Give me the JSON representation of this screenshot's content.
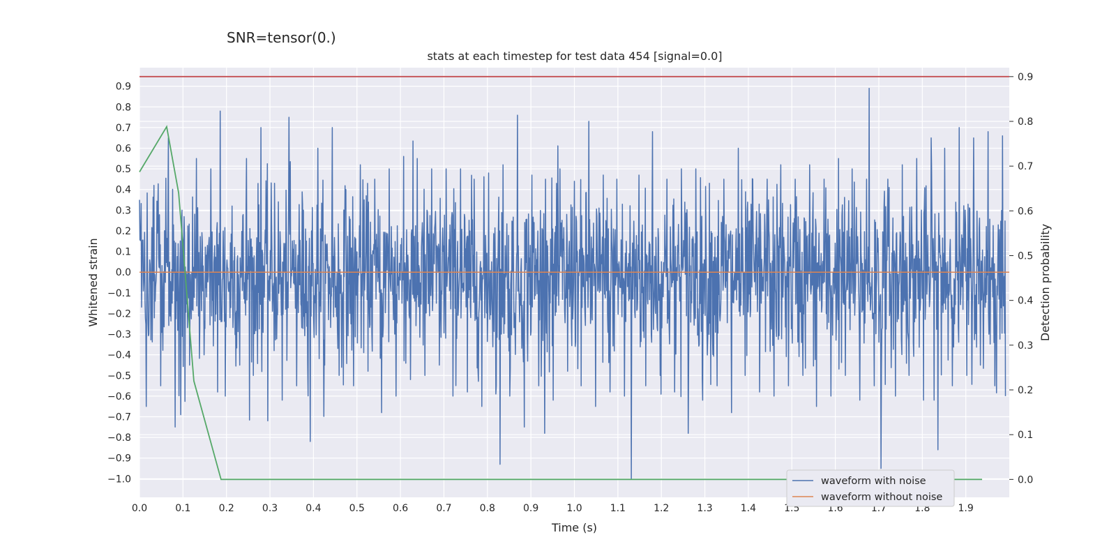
{
  "suptitle": "SNR=tensor(0.)",
  "chart_data": {
    "type": "line",
    "title": "stats at each timestep for test data 454 [signal=0.0]",
    "xlabel": "Time (s)",
    "ylabel": "Whitened strain",
    "ylabel_right": "Detection probability",
    "xlim": [
      0.0,
      2.0
    ],
    "ylim": [
      -1.09,
      0.99
    ],
    "ylim_right": [
      -0.04,
      0.92
    ],
    "x_ticks": [
      0.0,
      0.1,
      0.2,
      0.3,
      0.4,
      0.5,
      0.6,
      0.7,
      0.8,
      0.9,
      1.0,
      1.1,
      1.2,
      1.3,
      1.4,
      1.5,
      1.6,
      1.7,
      1.8,
      1.9
    ],
    "x_tick_labels": [
      "0.0",
      "0.1",
      "0.2",
      "0.3",
      "0.4",
      "0.5",
      "0.6",
      "0.7",
      "0.8",
      "0.9",
      "1.0",
      "1.1",
      "1.2",
      "1.3",
      "1.4",
      "1.5",
      "1.6",
      "1.7",
      "1.8",
      "1.9"
    ],
    "y_ticks": [
      0.9,
      0.8,
      0.7,
      0.6,
      0.5,
      0.4,
      0.3,
      0.2,
      0.1,
      0.0,
      -0.1,
      -0.2,
      -0.3,
      -0.4,
      -0.5,
      -0.6,
      -0.7,
      -0.8,
      -0.9,
      -1.0
    ],
    "y_tick_labels": [
      "0.9",
      "0.8",
      "0.7",
      "0.6",
      "0.5",
      "0.4",
      "0.3",
      "0.2",
      "0.1",
      "0.0",
      "−0.1",
      "−0.2",
      "−0.3",
      "−0.4",
      "−0.5",
      "−0.6",
      "−0.7",
      "−0.8",
      "−0.9",
      "−1.0"
    ],
    "y_right_ticks": [
      0.9,
      0.8,
      0.7,
      0.6,
      0.5,
      0.4,
      0.3,
      0.2,
      0.1,
      0.0
    ],
    "y_right_tick_labels": [
      "0.9",
      "0.8",
      "0.7",
      "0.6",
      "0.5",
      "0.4",
      "0.3",
      "0.2",
      "0.1",
      "0.0"
    ],
    "grid": true,
    "legend_position": "lower-right",
    "series": [
      {
        "name": "waveform with noise",
        "axis": "left",
        "color": "#4c72b0",
        "style": "dense noise, approx. 2048 samples",
        "x": [
          0.0,
          0.016,
          0.033,
          0.049,
          0.066,
          0.082,
          0.098,
          0.115,
          0.131,
          0.148,
          0.164,
          0.18,
          0.186,
          0.197,
          0.213,
          0.23,
          0.246,
          0.262,
          0.279,
          0.295,
          0.311,
          0.328,
          0.344,
          0.361,
          0.377,
          0.393,
          0.41,
          0.426,
          0.443,
          0.459,
          0.475,
          0.492,
          0.508,
          0.525,
          0.541,
          0.557,
          0.574,
          0.59,
          0.607,
          0.623,
          0.639,
          0.656,
          0.672,
          0.689,
          0.705,
          0.721,
          0.738,
          0.754,
          0.77,
          0.787,
          0.803,
          0.82,
          0.829,
          0.836,
          0.852,
          0.869,
          0.885,
          0.902,
          0.918,
          0.934,
          0.951,
          0.967,
          0.984,
          1.0,
          1.016,
          1.033,
          1.049,
          1.066,
          1.082,
          1.098,
          1.115,
          1.131,
          1.148,
          1.164,
          1.18,
          1.197,
          1.213,
          1.23,
          1.246,
          1.262,
          1.279,
          1.295,
          1.311,
          1.328,
          1.344,
          1.361,
          1.377,
          1.393,
          1.41,
          1.426,
          1.443,
          1.459,
          1.475,
          1.492,
          1.508,
          1.525,
          1.541,
          1.557,
          1.574,
          1.59,
          1.607,
          1.623,
          1.639,
          1.656,
          1.672,
          1.678,
          1.689,
          1.705,
          1.721,
          1.738,
          1.754,
          1.77,
          1.787,
          1.803,
          1.82,
          1.836,
          1.852,
          1.869,
          1.885,
          1.902,
          1.918,
          1.934,
          1.951,
          1.967,
          1.984,
          1.997
        ],
        "y": [
          0.35,
          -0.65,
          0.42,
          -0.55,
          0.65,
          -0.75,
          0.3,
          -0.45,
          0.55,
          -0.4,
          0.5,
          -0.58,
          0.78,
          -0.6,
          0.32,
          -0.45,
          0.55,
          -0.5,
          0.7,
          -0.72,
          0.43,
          -0.62,
          0.75,
          -0.55,
          0.3,
          -0.82,
          0.6,
          -0.45,
          0.7,
          -0.5,
          0.4,
          -0.55,
          0.52,
          -0.48,
          0.45,
          -0.68,
          0.5,
          -0.6,
          0.56,
          -0.52,
          0.55,
          -0.5,
          0.5,
          -0.45,
          0.5,
          -0.6,
          0.5,
          -0.58,
          0.45,
          -0.65,
          0.48,
          -0.55,
          -0.93,
          0.52,
          -0.6,
          0.76,
          -0.75,
          0.47,
          -0.55,
          0.45,
          -0.62,
          0.5,
          -0.48,
          0.44,
          -0.55,
          0.73,
          -0.65,
          0.47,
          -0.58,
          0.45,
          -0.6,
          -1.0,
          0.47,
          -0.55,
          0.68,
          -0.5,
          0.45,
          -0.58,
          0.5,
          -0.78,
          0.5,
          -0.62,
          0.43,
          -0.55,
          0.45,
          -0.68,
          0.6,
          -0.5,
          0.45,
          -0.58,
          0.45,
          -0.6,
          0.52,
          -0.55,
          0.45,
          -0.5,
          0.52,
          -0.65,
          0.45,
          -0.6,
          0.55,
          -0.5,
          0.5,
          -0.62,
          0.45,
          0.89,
          -0.55,
          -0.95,
          0.45,
          -0.6,
          0.52,
          -0.5,
          0.55,
          -0.62,
          0.65,
          -0.86,
          0.6,
          -0.55,
          0.7,
          -0.5,
          0.65,
          -0.45,
          0.68,
          -0.55,
          0.66,
          -0.6
        ]
      },
      {
        "name": "waveform without noise",
        "axis": "left",
        "color": "#dd8452",
        "x": [
          0.0,
          2.0
        ],
        "y": [
          0.0,
          0.0
        ]
      },
      {
        "name": "",
        "axis": "right",
        "color": "#55a868",
        "x": [
          0.0,
          0.0625,
          0.09,
          0.125,
          0.1875,
          0.25,
          1.9375
        ],
        "y": [
          0.687,
          0.788,
          0.64,
          0.22,
          0.0,
          0.0,
          0.0
        ]
      },
      {
        "name": "",
        "axis": "right",
        "color": "#c44e52",
        "x": [
          0.0,
          2.0
        ],
        "y": [
          0.9,
          0.9
        ]
      }
    ]
  }
}
